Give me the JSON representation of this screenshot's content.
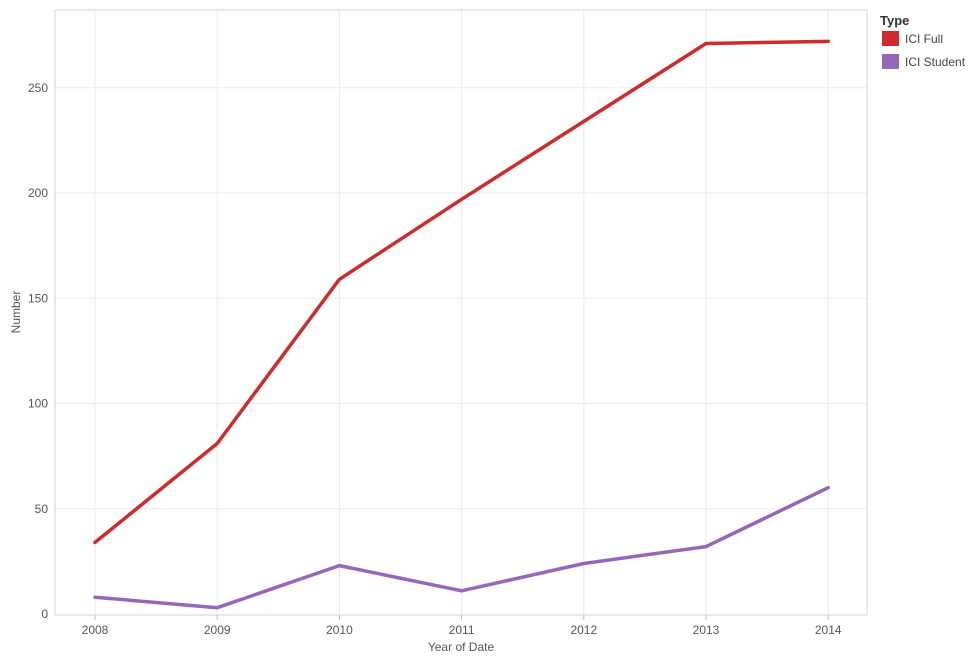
{
  "chart_data": {
    "type": "line",
    "title": "",
    "xlabel": "Year of Date",
    "ylabel": "Number",
    "x": [
      "2008",
      "2009",
      "2010",
      "2011",
      "2012",
      "2013",
      "2014"
    ],
    "ylim": [
      0,
      280
    ],
    "y_ticks": [
      "0",
      "50",
      "100",
      "150",
      "200",
      "250"
    ],
    "grid": true,
    "legend": {
      "title": "Type",
      "placement": "top-right",
      "entries": [
        "ICI Full",
        "ICI Student"
      ]
    },
    "series": [
      {
        "name": "ICI Full",
        "color": "#d02a2a",
        "values": [
          34,
          81,
          159,
          197,
          234,
          271,
          272
        ]
      },
      {
        "name": "ICI Student",
        "color": "#9467bd",
        "values": [
          8,
          3,
          23,
          11,
          24,
          32,
          60
        ]
      }
    ]
  }
}
